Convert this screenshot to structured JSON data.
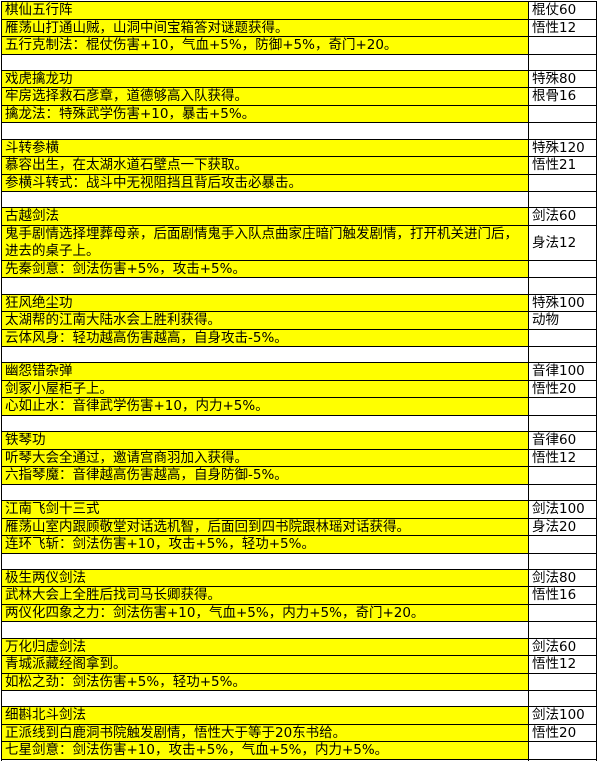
{
  "page": {
    "background_color": "#ffffff",
    "highlight_color": "#ffff00",
    "border_color": "#000000",
    "text_color": "#000000"
  },
  "table": {
    "columns": [
      "skill-info",
      "requirements"
    ]
  },
  "sections": [
    {
      "title": "棋仙五行阵",
      "req1": "棍仗60",
      "desc": "雁荡山打通山贼，山洞中间宝箱答对谜题获得。",
      "req2": "悟性12",
      "effect": "五行克制法：棍仗伤害+10，气血+5%，防御+5%，奇门+20。"
    },
    {
      "title": "戏虎擒龙功",
      "req1": "特殊80",
      "desc": "牢房选择救石彦章，道德够高入队获得。",
      "req2": "根骨16",
      "effect": "擒龙法：特殊武学伤害+10，暴击+5%。"
    },
    {
      "title": "斗转参横",
      "req1": "特殊120",
      "desc": "慕容出生，在太湖水道石壁点一下获取。",
      "req2": "悟性21",
      "effect": "参横斗转式：战斗中无视阻挡且背后攻击必暴击。"
    },
    {
      "title": "古越剑法",
      "req1": "剑法60",
      "desc": "鬼手剧情选择埋葬母亲，后面剧情鬼手入队点曲家庄暗门触发剧情，打开机关进门后，进去的桌子上。",
      "req2": "身法12",
      "effect": "先秦剑意：剑法伤害+5%，攻击+5%。",
      "tall_desc": true
    },
    {
      "title": "狂风绝尘功",
      "req1": "特殊100",
      "desc": "太湖帮的江南大陆水会上胜利获得。",
      "req2": "动物",
      "effect": "云体风身：轻功越高伤害越高，自身攻击-5%。"
    },
    {
      "title": "幽怨错杂弹",
      "req1": "音律100",
      "desc": "剑冢小屋柜子上。",
      "req2": "悟性20",
      "effect": "心如止水：音律武学伤害+10，内力+5%。"
    },
    {
      "title": "铁琴功",
      "req1": "音律60",
      "desc": "听琴大会全通过，邀请宫商羽加入获得。",
      "req2": "悟性12",
      "effect": "六指琴魔：音律越高伤害越高，自身防御-5%。"
    },
    {
      "title": "江南飞剑十三式",
      "req1": "剑法100",
      "desc": "雁荡山室内跟顾敬堂对话选机智，后面回到四书院跟林瑶对话获得。",
      "req2": "身法20",
      "effect": "连环飞斩：剑法伤害+10，攻击+5%，轻功+5%。"
    },
    {
      "title": "极生两仪剑法",
      "req1": "剑法80",
      "desc": "武林大会上全胜后找司马长卿获得。",
      "req2": "悟性16",
      "effect": "两仪化四象之力：剑法伤害+10，气血+5%，内力+5%，奇门+20。"
    },
    {
      "title": "万化归虚剑法",
      "req1": "剑法60",
      "desc": "青城派藏经阁拿到。",
      "req2": "悟性12",
      "effect": "如松之劲：剑法伤害+5%，轻功+5%。"
    },
    {
      "title": "细斟北斗剑法",
      "req1": "剑法100",
      "desc": "正派线到白鹿洞书院触发剧情，悟性大于等于20东书给。",
      "req2": "悟性20",
      "effect": "七星剑意：剑法伤害+10，攻击+5%，气血+5%，内力+5%。"
    }
  ]
}
